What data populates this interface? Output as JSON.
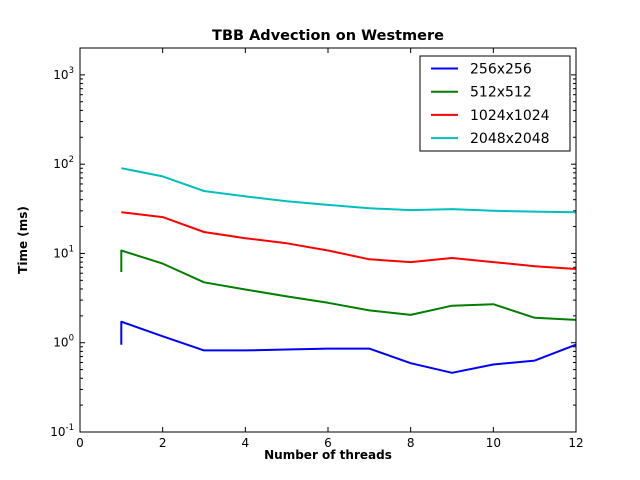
{
  "chart_data": {
    "type": "line",
    "title": "TBB Advection on Westmere",
    "xlabel": "Number of threads",
    "ylabel": "Time (ms)",
    "y_scale": "log",
    "xlim": [
      0,
      12
    ],
    "ylim": [
      0.1,
      2000
    ],
    "x_ticks": [
      0,
      2,
      4,
      6,
      8,
      10,
      12
    ],
    "y_tick_exponents": [
      -1,
      0,
      1,
      2,
      3
    ],
    "grid": false,
    "legend_position": "upper right",
    "frame_color": "#000000",
    "background_color": "#ffffff",
    "series": [
      {
        "name": "256x256",
        "color": "#0000ff",
        "x": [
          1,
          1,
          2,
          3,
          4,
          5,
          6,
          7,
          8,
          9,
          10,
          11,
          12
        ],
        "y": [
          0.95,
          1.72,
          1.18,
          0.82,
          0.82,
          0.84,
          0.86,
          0.86,
          0.59,
          0.46,
          0.57,
          0.63,
          0.95
        ]
      },
      {
        "name": "512x512",
        "color": "#007f00",
        "x": [
          1,
          1,
          2,
          3,
          4,
          5,
          6,
          7,
          8,
          9,
          10,
          11,
          12
        ],
        "y": [
          6.2,
          10.8,
          7.7,
          4.75,
          3.95,
          3.3,
          2.8,
          2.3,
          2.05,
          2.6,
          2.7,
          1.9,
          1.8
        ]
      },
      {
        "name": "1024x1024",
        "color": "#ff0000",
        "x": [
          1,
          2,
          3,
          4,
          5,
          6,
          7,
          8,
          9,
          10,
          11,
          12
        ],
        "y": [
          29,
          25.5,
          17.4,
          14.8,
          13.0,
          10.8,
          8.6,
          8.0,
          8.9,
          8.0,
          7.2,
          6.7
        ]
      },
      {
        "name": "2048x2048",
        "color": "#00bfbf",
        "x": [
          1,
          2,
          3,
          4,
          5,
          6,
          7,
          8,
          9,
          10,
          11,
          12
        ],
        "y": [
          90,
          73,
          50,
          43.5,
          38.5,
          35,
          32,
          30.6,
          31.4,
          30,
          29.4,
          29
        ]
      }
    ]
  }
}
